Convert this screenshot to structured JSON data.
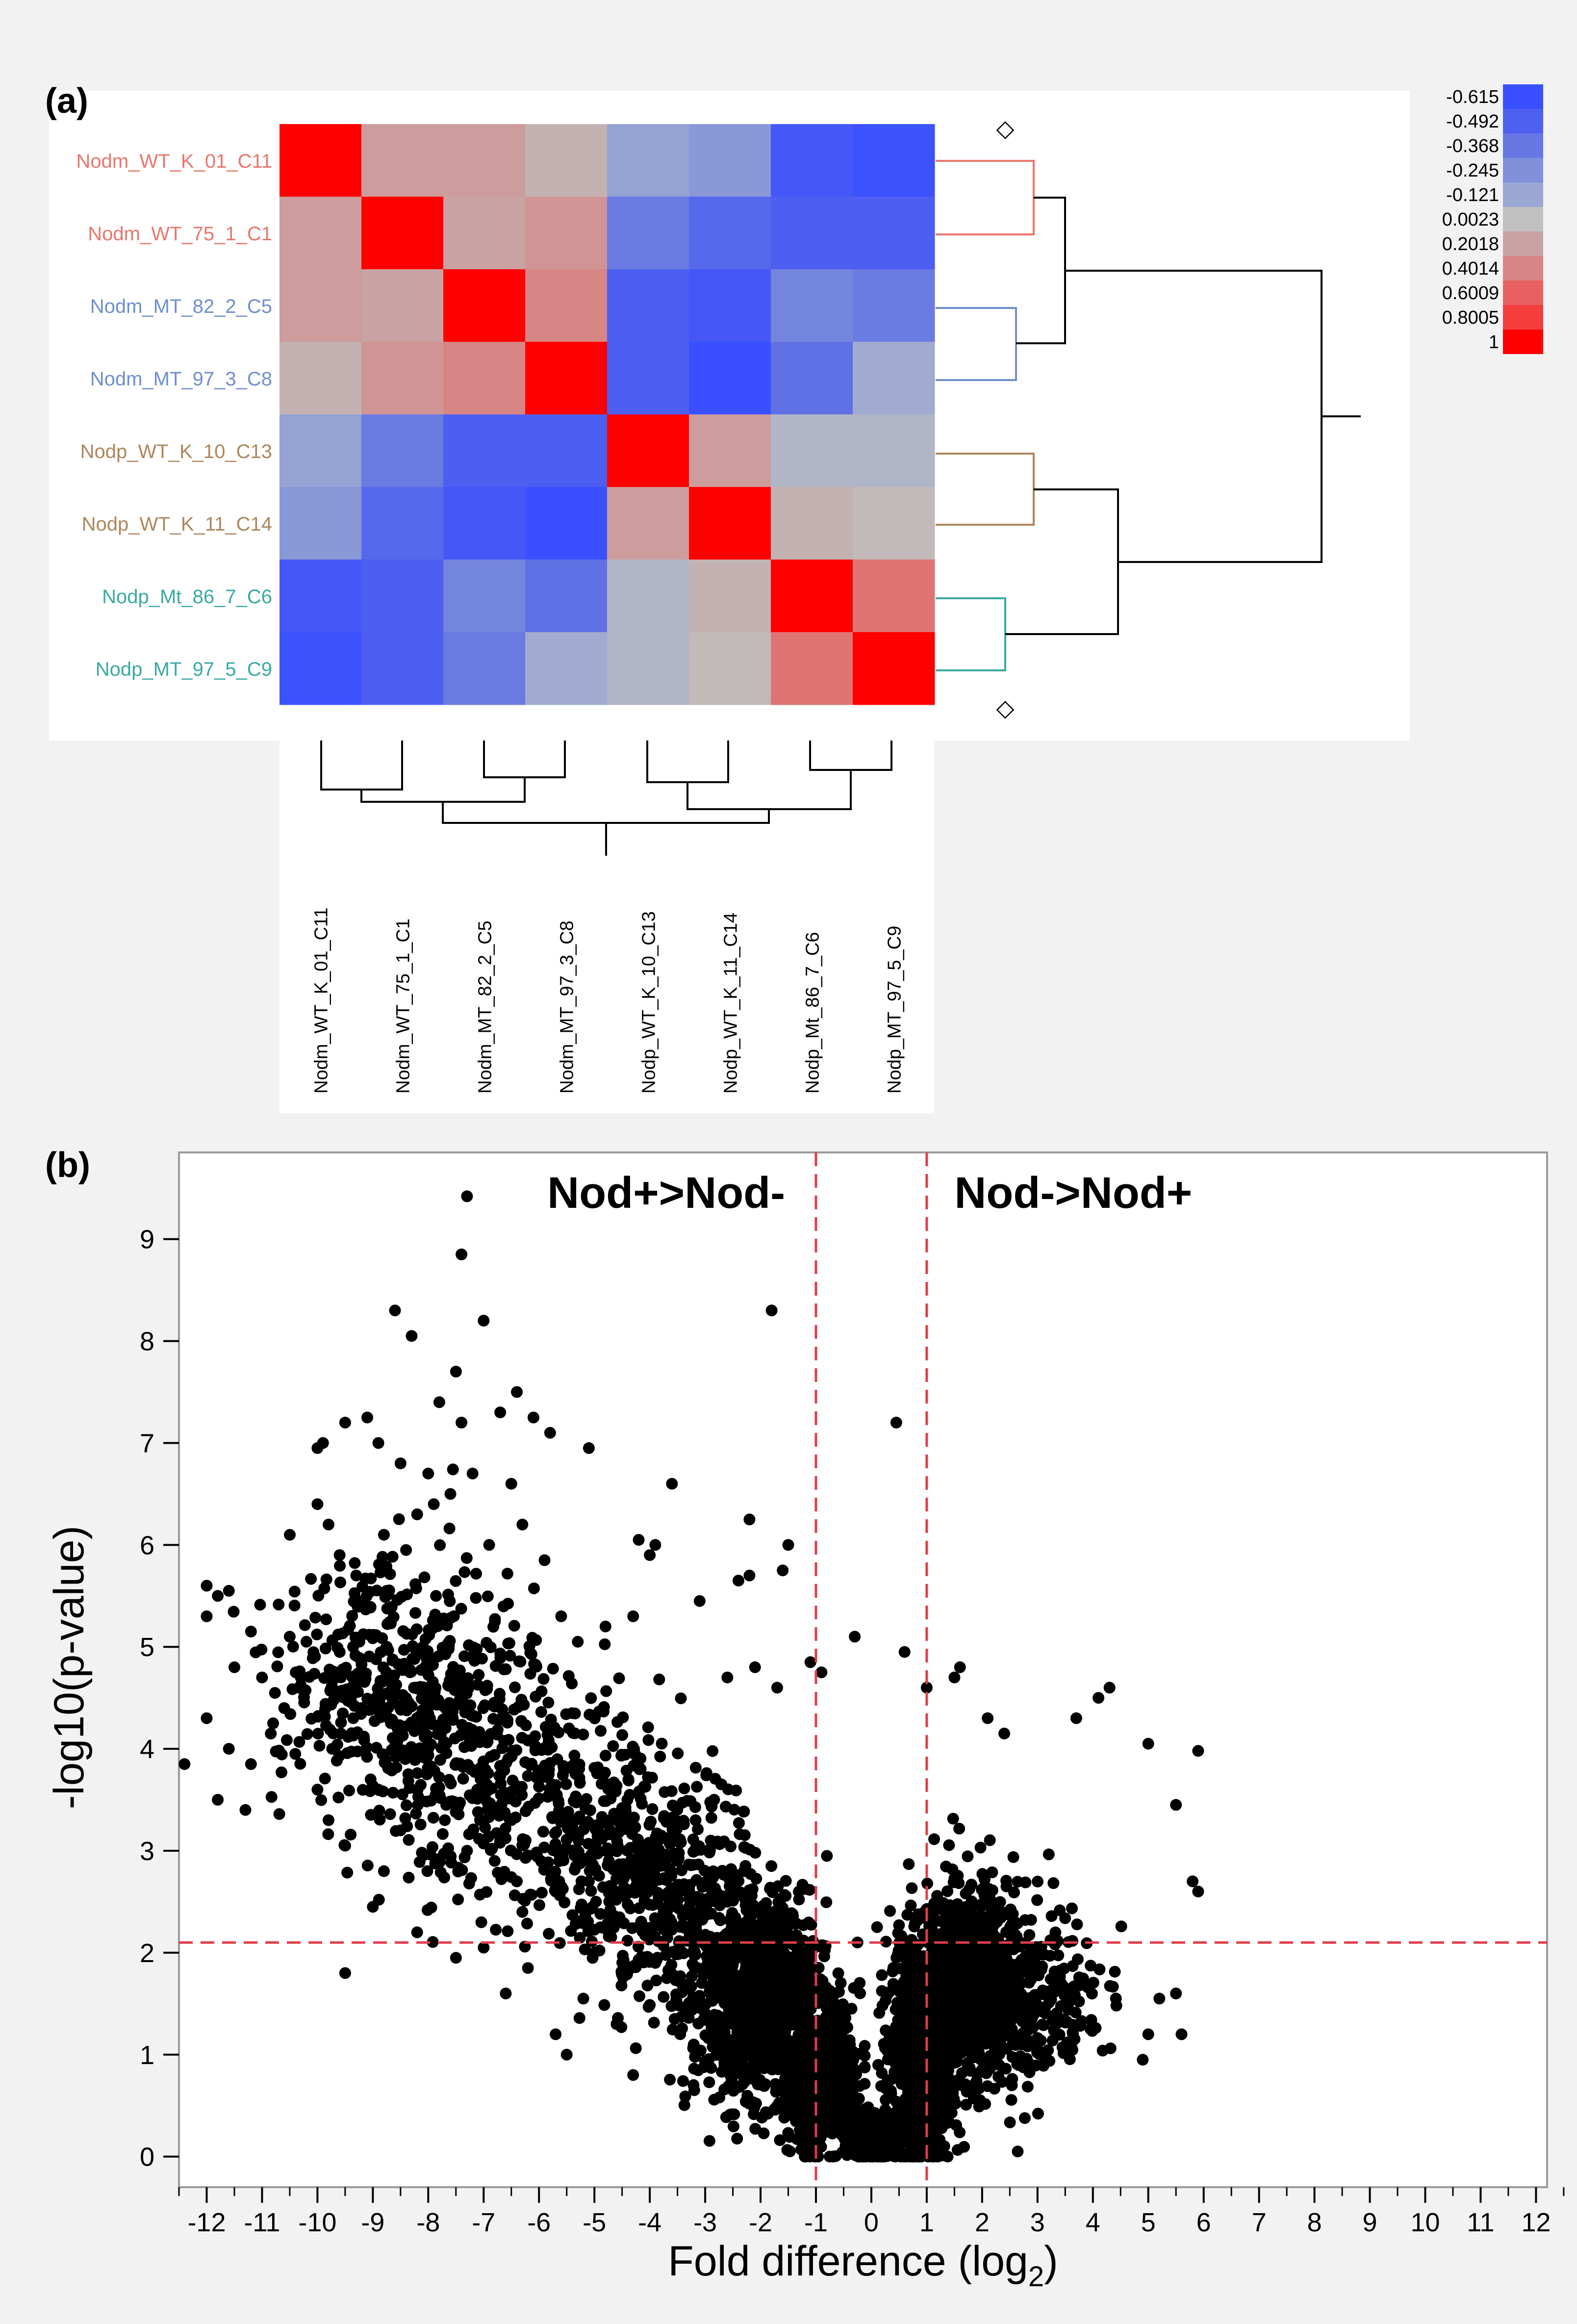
{
  "panel_a_label": "(a)",
  "panel_b_label": "(b)",
  "chart_data": [
    {
      "type": "heatmap",
      "title": "",
      "row_labels": [
        "Nodm_WT_K_01_C11",
        "Nodm_WT_75_1_C1",
        "Nodm_MT_82_2_C5",
        "Nodm_MT_97_3_C8",
        "Nodp_WT_K_10_C13",
        "Nodp_WT_K_11_C14",
        "Nodp_Mt_86_7_C6",
        "Nodp_MT_97_5_C9"
      ],
      "col_labels": [
        "Nodm_WT_K_01_C11",
        "Nodm_WT_75_1_C1",
        "Nodm_MT_82_2_C5",
        "Nodm_MT_97_3_C8",
        "Nodp_WT_K_10_C13",
        "Nodp_WT_K_11_C14",
        "Nodp_Mt_86_7_C6",
        "Nodp_MT_97_5_C9"
      ],
      "row_label_colors": [
        "#e8766b",
        "#e8766b",
        "#6e8ed0",
        "#6e8ed0",
        "#ae865a",
        "#ae865a",
        "#3aa9a2",
        "#3aa9a2"
      ],
      "values": [
        [
          1,
          0.25,
          0.25,
          0.1,
          -0.15,
          -0.2,
          -0.55,
          -0.6
        ],
        [
          0.25,
          1,
          0.2,
          0.3,
          -0.35,
          -0.45,
          -0.5,
          -0.5
        ],
        [
          0.25,
          0.2,
          1,
          0.4,
          -0.5,
          -0.55,
          -0.3,
          -0.35
        ],
        [
          0.1,
          0.3,
          0.4,
          1,
          -0.5,
          -0.615,
          -0.4,
          -0.1
        ],
        [
          -0.15,
          -0.35,
          -0.5,
          -0.5,
          1,
          0.25,
          -0.05,
          -0.05
        ],
        [
          -0.2,
          -0.45,
          -0.55,
          -0.615,
          0.25,
          1,
          0.1,
          0.05
        ],
        [
          -0.55,
          -0.5,
          -0.3,
          -0.4,
          -0.05,
          0.1,
          1,
          0.5
        ],
        [
          -0.6,
          -0.5,
          -0.35,
          -0.1,
          -0.05,
          0.05,
          0.5,
          1
        ]
      ],
      "color_scale": {
        "labels": [
          "-0.615",
          "-0.492",
          "-0.368",
          "-0.245",
          "-0.121",
          "0.0023",
          "0.2018",
          "0.4014",
          "0.6009",
          "0.8005",
          "1"
        ],
        "colors": [
          "#3a50ff",
          "#4e60f0",
          "#6677e3",
          "#8090da",
          "#9aa7d2",
          "#c0c0c0",
          "#c9a3a3",
          "#d88585",
          "#e86060",
          "#f43d3d",
          "#ff0000"
        ]
      },
      "dendrogram_markers": [
        "◇",
        "◇"
      ]
    },
    {
      "type": "scatter",
      "title": "",
      "xlabel": "Fold difference (log",
      "xlabel_sub": "2",
      "xlabel_close": ")",
      "ylabel": "-log10(p-value)",
      "xlim": [
        -12.5,
        12.2
      ],
      "ylim": [
        -0.3,
        9.85
      ],
      "x_ticks": [
        "-12",
        "-11",
        "-10",
        "-9",
        "-8",
        "-7",
        "-6",
        "-5",
        "-4",
        "-3",
        "-2",
        "-1",
        "0",
        "1",
        "2",
        "3",
        "4",
        "5",
        "6",
        "7",
        "8",
        "9",
        "10",
        "11",
        "12"
      ],
      "y_ticks": [
        "0",
        "1",
        "2",
        "3",
        "4",
        "5",
        "6",
        "7",
        "8",
        "9"
      ],
      "thresholds": {
        "x": [
          -1,
          1
        ],
        "y": 2.1
      },
      "threshold_color": "#e03c4a",
      "annotations": [
        {
          "text": "Nod+>Nod-",
          "x": -5.85,
          "y": 9.45
        },
        {
          "text": "Nod->Nod+",
          "x": 1.5,
          "y": 9.45
        }
      ],
      "points": [
        [
          -7.3,
          9.42
        ],
        [
          -7.4,
          8.85
        ],
        [
          -8.6,
          8.3
        ],
        [
          -8.3,
          8.05
        ],
        [
          -7.0,
          8.2
        ],
        [
          -1.8,
          8.3
        ],
        [
          0.45,
          7.2
        ],
        [
          -9.1,
          7.25
        ],
        [
          -9.5,
          7.2
        ],
        [
          -6.4,
          7.5
        ],
        [
          -6.1,
          7.25
        ],
        [
          -5.8,
          7.1
        ],
        [
          -7.8,
          7.4
        ],
        [
          -7.4,
          7.2
        ],
        [
          -7.5,
          7.7
        ],
        [
          -6.7,
          7.3
        ],
        [
          -8.9,
          7.0
        ],
        [
          -9.9,
          7.0
        ],
        [
          -10.0,
          6.95
        ],
        [
          -8.5,
          6.8
        ],
        [
          -8.0,
          6.7
        ],
        [
          -7.2,
          6.7
        ],
        [
          -6.5,
          6.6
        ],
        [
          -5.1,
          6.95
        ],
        [
          -3.6,
          6.6
        ],
        [
          -2.2,
          6.25
        ],
        [
          -1.5,
          6.0
        ],
        [
          -1.6,
          5.75
        ],
        [
          -2.2,
          5.7
        ],
        [
          -2.4,
          5.65
        ],
        [
          -4.0,
          5.9
        ],
        [
          -4.2,
          6.05
        ],
        [
          -3.9,
          6.0
        ],
        [
          -12.0,
          5.6
        ],
        [
          -11.8,
          5.5
        ],
        [
          -11.6,
          5.55
        ],
        [
          -12.0,
          5.3
        ],
        [
          -11.5,
          4.8
        ],
        [
          -11.2,
          5.15
        ],
        [
          -10.5,
          5.1
        ],
        [
          -10.2,
          5.05
        ],
        [
          -10.0,
          6.4
        ],
        [
          -9.8,
          6.2
        ],
        [
          -9.6,
          5.9
        ],
        [
          -9.3,
          5.7
        ],
        [
          -8.8,
          6.1
        ],
        [
          -8.4,
          5.95
        ],
        [
          -8.2,
          6.3
        ],
        [
          -7.9,
          6.4
        ],
        [
          -7.6,
          6.5
        ],
        [
          -6.9,
          6.0
        ],
        [
          -6.3,
          6.2
        ],
        [
          -5.9,
          5.85
        ],
        [
          -5.6,
          5.3
        ],
        [
          -5.3,
          5.05
        ],
        [
          -4.8,
          5.2
        ],
        [
          -4.3,
          5.3
        ],
        [
          -3.1,
          5.45
        ],
        [
          -2.6,
          4.7
        ],
        [
          -2.1,
          4.8
        ],
        [
          -1.7,
          4.6
        ],
        [
          -1.1,
          4.85
        ],
        [
          -0.9,
          4.75
        ],
        [
          -0.3,
          5.1
        ],
        [
          0.6,
          4.95
        ],
        [
          1.0,
          4.6
        ],
        [
          1.5,
          4.7
        ],
        [
          1.6,
          4.8
        ],
        [
          2.1,
          4.3
        ],
        [
          2.4,
          4.15
        ],
        [
          3.7,
          4.3
        ],
        [
          4.1,
          4.5
        ],
        [
          4.3,
          4.6
        ],
        [
          5.0,
          4.05
        ],
        [
          5.9,
          3.98
        ],
        [
          5.5,
          3.45
        ],
        [
          5.8,
          2.7
        ],
        [
          5.9,
          2.6
        ],
        [
          5.5,
          1.6
        ],
        [
          5.2,
          1.55
        ],
        [
          5.0,
          1.2
        ],
        [
          5.6,
          1.2
        ],
        [
          4.9,
          0.95
        ],
        [
          -12.4,
          3.85
        ],
        [
          -12.0,
          4.3
        ],
        [
          -11.8,
          3.5
        ],
        [
          -11.3,
          3.4
        ],
        [
          -11.2,
          3.85
        ],
        [
          -11.6,
          4.0
        ],
        [
          -10.6,
          4.4
        ],
        [
          -10.4,
          3.95
        ],
        [
          -10.0,
          3.6
        ],
        [
          -9.8,
          3.3
        ],
        [
          -9.5,
          3.05
        ],
        [
          -9.5,
          1.8
        ],
        [
          -9.0,
          2.45
        ],
        [
          -8.8,
          2.8
        ],
        [
          -8.2,
          2.2
        ],
        [
          -7.5,
          1.95
        ],
        [
          -7.0,
          2.05
        ],
        [
          -6.6,
          1.6
        ],
        [
          -6.4,
          2.7
        ],
        [
          -6.2,
          1.85
        ],
        [
          -5.7,
          1.2
        ],
        [
          -5.5,
          1.0
        ],
        [
          -5.2,
          1.55
        ],
        [
          -5.0,
          2.0
        ],
        [
          -4.6,
          1.3
        ],
        [
          -4.3,
          0.8
        ],
        [
          -11.0,
          4.7
        ],
        [
          -10.8,
          4.25
        ],
        [
          -10.3,
          4.7
        ],
        [
          -9.7,
          4.0
        ],
        [
          -9.2,
          4.4
        ],
        [
          -8.9,
          3.6
        ],
        [
          -8.5,
          3.2
        ],
        [
          -8.0,
          4.0
        ],
        [
          -7.7,
          3.3
        ],
        [
          -7.3,
          3.0
        ],
        [
          -7.0,
          3.8
        ],
        [
          -6.8,
          2.9
        ],
        [
          -6.5,
          3.3
        ],
        [
          -6.3,
          2.4
        ],
        [
          -6.0,
          3.7
        ],
        [
          -5.7,
          2.6
        ],
        [
          -5.4,
          3.2
        ],
        [
          -5.1,
          2.7
        ],
        [
          -4.8,
          3.0
        ],
        [
          -4.5,
          2.3
        ],
        [
          -4.2,
          2.6
        ],
        [
          -3.9,
          1.9
        ],
        [
          -3.5,
          2.9
        ],
        [
          -3.2,
          2.2
        ],
        [
          -2.9,
          3.1
        ],
        [
          -2.6,
          2.5
        ],
        [
          -2.3,
          2.8
        ]
      ],
      "clusters": [
        {
          "cx": -8.3,
          "cy": 4.5,
          "sx": 1.6,
          "sy": 0.9,
          "n": 520,
          "xmin": -12.4,
          "xmax": -3.5,
          "ymin": 2.5,
          "ymax": 7.2
        },
        {
          "cx": -6.0,
          "cy": 3.5,
          "sx": 1.6,
          "sy": 0.9,
          "n": 380,
          "xmin": -10.0,
          "xmax": -2.0,
          "ymin": 1.5,
          "ymax": 6.0
        },
        {
          "cx": -3.8,
          "cy": 2.7,
          "sx": 1.1,
          "sy": 0.85,
          "n": 420,
          "xmin": -6.5,
          "xmax": -1.0,
          "ymin": 0.6,
          "ymax": 5.0
        },
        {
          "cx": -2.0,
          "cy": 1.6,
          "sx": 0.9,
          "sy": 0.75,
          "n": 900,
          "xmin": -4.5,
          "xmax": -0.25,
          "ymin": 0.05,
          "ymax": 4.2
        },
        {
          "cx": -0.9,
          "cy": 0.8,
          "sx": 0.45,
          "sy": 0.5,
          "n": 700,
          "xmin": -2.5,
          "xmax": -0.12,
          "ymin": 0.0,
          "ymax": 3.2
        },
        {
          "cx": 0.0,
          "cy": 0.2,
          "sx": 0.3,
          "sy": 0.15,
          "n": 600,
          "xmin": -1.0,
          "xmax": 1.0,
          "ymin": 0.0,
          "ymax": 0.7
        },
        {
          "cx": 0.9,
          "cy": 1.0,
          "sx": 0.45,
          "sy": 0.7,
          "n": 700,
          "xmin": 0.05,
          "xmax": 2.5,
          "ymin": 0.0,
          "ymax": 3.8
        },
        {
          "cx": 1.8,
          "cy": 1.7,
          "sx": 0.8,
          "sy": 0.75,
          "n": 800,
          "xmin": 0.2,
          "xmax": 4.5,
          "ymin": 0.05,
          "ymax": 4.0
        },
        {
          "cx": 3.2,
          "cy": 1.6,
          "sx": 0.75,
          "sy": 0.6,
          "n": 180,
          "xmin": 1.5,
          "xmax": 5.2,
          "ymin": 0.3,
          "ymax": 3.5
        }
      ],
      "point_color": "#000000"
    }
  ]
}
